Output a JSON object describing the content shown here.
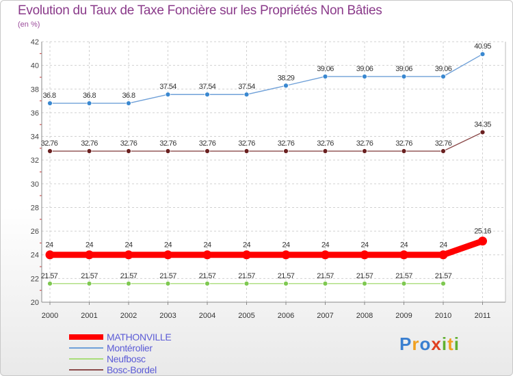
{
  "chart_data": {
    "type": "line",
    "title": "Evolution du Taux de Taxe Foncière sur les Propriétés Non Bâties",
    "subtitle": "(en %)",
    "xlabel": "",
    "ylabel": "",
    "categories": [
      "2000",
      "2001",
      "2002",
      "2003",
      "2004",
      "2005",
      "2006",
      "2007",
      "2008",
      "2009",
      "2010",
      "2011"
    ],
    "ylim": [
      20,
      42
    ],
    "yticks": [
      20,
      22,
      24,
      26,
      28,
      30,
      32,
      34,
      36,
      38,
      40,
      42
    ],
    "grid": true,
    "legend_position": "bottom-left",
    "series": [
      {
        "name": "MATHONVILLE",
        "color": "#ff0000",
        "values": [
          24,
          24,
          24,
          24,
          24,
          24,
          24,
          24,
          24,
          24,
          24,
          25.16
        ],
        "labels": [
          "24",
          "24",
          "24",
          "24",
          "24",
          "24",
          "24",
          "24",
          "24",
          "24",
          "24",
          "25.16"
        ]
      },
      {
        "name": "Montérolier",
        "color": "#6fa0d8",
        "marker_color": "#3a88d0",
        "values": [
          36.8,
          36.8,
          36.8,
          37.54,
          37.54,
          37.54,
          38.29,
          39.06,
          39.06,
          39.06,
          39.06,
          40.95
        ],
        "labels": [
          "36.8",
          "36.8",
          "36.8",
          "37.54",
          "37.54",
          "37.54",
          "38.29",
          "39.06",
          "39.06",
          "39.06",
          "39.06",
          "40.95"
        ]
      },
      {
        "name": "Neufbosc",
        "color": "#a8dc78",
        "marker_color": "#7ec850",
        "values": [
          21.57,
          21.57,
          21.57,
          21.57,
          21.57,
          21.57,
          21.57,
          21.57,
          21.57,
          21.57,
          21.57,
          null
        ],
        "labels": [
          "21.57",
          "21.57",
          "21.57",
          "21.57",
          "21.57",
          "21.57",
          "21.57",
          "21.57",
          "21.57",
          "21.57",
          "21.57",
          ""
        ]
      },
      {
        "name": "Bosc-Bordel",
        "color": "#8b4a4a",
        "marker_color": "#6a2020",
        "values": [
          32.76,
          32.76,
          32.76,
          32.76,
          32.76,
          32.76,
          32.76,
          32.76,
          32.76,
          32.76,
          32.76,
          34.35
        ],
        "labels": [
          "32.76",
          "32.76",
          "32.76",
          "32.76",
          "32.76",
          "32.76",
          "32.76",
          "32.76",
          "32.76",
          "32.76",
          "32.76",
          "34.35"
        ]
      }
    ]
  },
  "legend": {
    "items": [
      {
        "label": "MATHONVILLE",
        "color": "#ff0000"
      },
      {
        "label": "Montérolier",
        "color": "#6fa0d8"
      },
      {
        "label": "Neufbosc",
        "color": "#a8dc78"
      },
      {
        "label": "Bosc-Bordel",
        "color": "#8b4a4a"
      }
    ]
  },
  "logo": {
    "letters": [
      "P",
      "r",
      "o",
      "x",
      "i",
      "t",
      "i"
    ],
    "colors": [
      "#3a7fd0",
      "#f0a020",
      "#3a7fd0",
      "#e04020",
      "#60b030",
      "#f0a020",
      "#60b030"
    ]
  }
}
